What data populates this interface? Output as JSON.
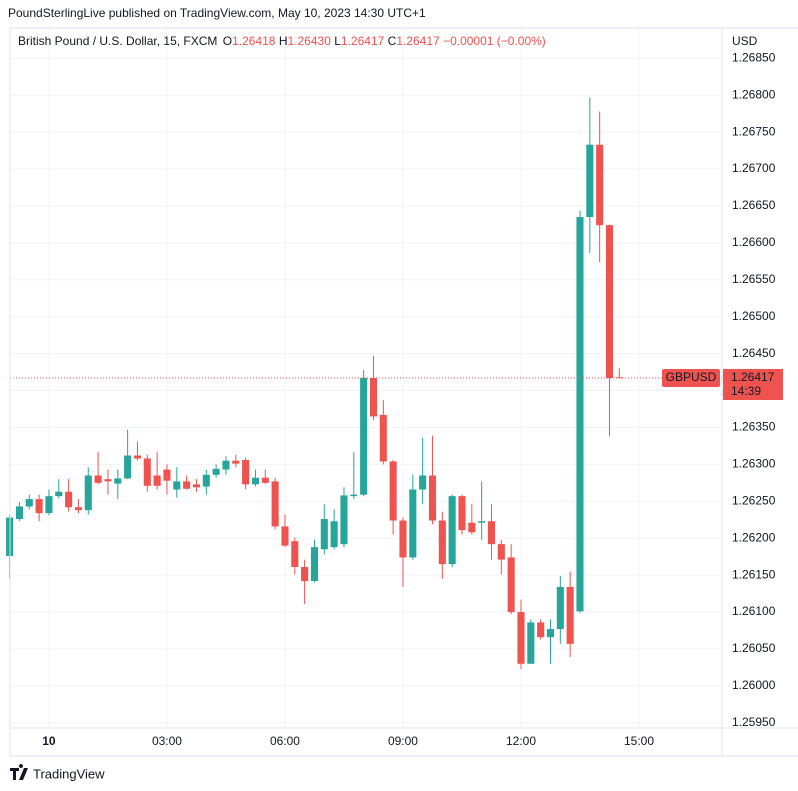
{
  "chart_data": {
    "type": "candlestick",
    "title": "PoundSterlingLive published on TradingView.com, May 10, 2023 14:30 UTC+1",
    "symbol_description": "British Pound / U.S. Dollar, 15, FXCM",
    "ohlc_legend": [
      {
        "key": "O",
        "text": "1.26418"
      },
      {
        "key": "H",
        "text": "1.26430"
      },
      {
        "key": "L",
        "text": "1.26417"
      },
      {
        "key": "C",
        "text": "1.26417"
      }
    ],
    "change": "−0.00001 (−0.00%)",
    "currency": "USD",
    "watermark": "TradingView",
    "up_color": "#26a69a",
    "down_color": "#ef5350",
    "grid": true,
    "last_price": {
      "symbol": "GBPUSD",
      "value_label": "1.26417",
      "countdown": "14:39"
    },
    "xlim": [
      -0.99,
      17.11
    ],
    "xticks": [
      {
        "value": 0,
        "label": "10"
      },
      {
        "value": 3,
        "label": "03:00"
      },
      {
        "value": 6,
        "label": "06:00"
      },
      {
        "value": 9,
        "label": "09:00"
      },
      {
        "value": 12,
        "label": "12:00"
      },
      {
        "value": 15,
        "label": "15:00"
      }
    ],
    "ylim": [
      1.25943,
      1.26891
    ],
    "yticks": [
      {
        "value": 1.2595,
        "label": "1.25950"
      },
      {
        "value": 1.26,
        "label": "1.26000"
      },
      {
        "value": 1.2605,
        "label": "1.26050"
      },
      {
        "value": 1.261,
        "label": "1.26100"
      },
      {
        "value": 1.2615,
        "label": "1.26150"
      },
      {
        "value": 1.262,
        "label": "1.26200"
      },
      {
        "value": 1.2625,
        "label": "1.26250"
      },
      {
        "value": 1.263,
        "label": "1.26300"
      },
      {
        "value": 1.2635,
        "label": "1.26350"
      },
      {
        "value": 1.264,
        "label": "1.26400"
      },
      {
        "value": 1.2645,
        "label": "1.26450"
      },
      {
        "value": 1.265,
        "label": "1.26500"
      },
      {
        "value": 1.2655,
        "label": "1.26550"
      },
      {
        "value": 1.266,
        "label": "1.26600"
      },
      {
        "value": 1.2665,
        "label": "1.26650"
      },
      {
        "value": 1.267,
        "label": "1.26700"
      },
      {
        "value": 1.2675,
        "label": "1.26750"
      },
      {
        "value": 1.268,
        "label": "1.26800"
      },
      {
        "value": 1.2685,
        "label": "1.26850"
      }
    ],
    "x": [
      -1,
      -0.75,
      -0.5,
      -0.25,
      0,
      0.25,
      0.5,
      0.75,
      1,
      1.25,
      1.5,
      1.75,
      2,
      2.25,
      2.5,
      2.75,
      3,
      3.25,
      3.5,
      3.75,
      4,
      4.25,
      4.5,
      4.75,
      5,
      5.25,
      5.5,
      5.75,
      6,
      6.25,
      6.5,
      6.75,
      7,
      7.25,
      7.5,
      7.75,
      8,
      8.25,
      8.5,
      8.75,
      9,
      9.25,
      9.5,
      9.75,
      10,
      10.25,
      10.5,
      10.75,
      11,
      11.25,
      11.5,
      11.75,
      12,
      12.25,
      12.5,
      12.75,
      13,
      13.25,
      13.5,
      13.75,
      14,
      14.25,
      14.5
    ],
    "open": [
      1.26176,
      1.26226,
      1.26243,
      1.26253,
      1.26234,
      1.26257,
      1.26263,
      1.26242,
      1.26238,
      1.26285,
      1.2628,
      1.26274,
      1.26281,
      1.26312,
      1.26308,
      1.26285,
      1.26293,
      1.26266,
      1.26277,
      1.26273,
      1.2627,
      1.26286,
      1.26293,
      1.26305,
      1.26306,
      1.26273,
      1.26282,
      1.26277,
      1.26216,
      1.26196,
      1.26161,
      1.26142,
      1.26185,
      1.26188,
      1.26192,
      1.26257,
      1.26259,
      1.26417,
      1.26367,
      1.26304,
      1.26224,
      1.26174,
      1.26266,
      1.26285,
      1.26224,
      1.26165,
      1.26257,
      1.26221,
      1.26221,
      1.26223,
      1.26192,
      1.26174,
      1.261,
      1.2603,
      1.26086,
      1.26066,
      1.26077,
      1.26134,
      1.26101,
      1.26635,
      1.26733,
      1.26624,
      1.26418
    ],
    "high": [
      1.26232,
      1.26249,
      1.26259,
      1.26259,
      1.26266,
      1.2628,
      1.2628,
      1.26253,
      1.26296,
      1.26317,
      1.26293,
      1.26293,
      1.26347,
      1.26331,
      1.26313,
      1.26317,
      1.263,
      1.26296,
      1.26285,
      1.2628,
      1.26293,
      1.263,
      1.26311,
      1.26313,
      1.26309,
      1.26293,
      1.26293,
      1.26282,
      1.26232,
      1.26201,
      1.26171,
      1.26198,
      1.26246,
      1.26239,
      1.26269,
      1.26317,
      1.26428,
      1.26447,
      1.26387,
      1.26306,
      1.26228,
      1.26286,
      1.26336,
      1.26339,
      1.26236,
      1.26259,
      1.26259,
      1.26246,
      1.26277,
      1.26246,
      1.26198,
      1.26192,
      1.26117,
      1.2609,
      1.2609,
      1.2609,
      1.26149,
      1.26155,
      1.26644,
      1.26797,
      1.26778,
      1.26625,
      1.2643
    ],
    "low": [
      1.26145,
      1.26223,
      1.26239,
      1.26223,
      1.26231,
      1.26254,
      1.26236,
      1.26234,
      1.26232,
      1.26273,
      1.26259,
      1.26253,
      1.2628,
      1.26305,
      1.26263,
      1.26266,
      1.26259,
      1.26255,
      1.26266,
      1.26263,
      1.26259,
      1.26282,
      1.26286,
      1.26296,
      1.26266,
      1.2627,
      1.26273,
      1.26212,
      1.26188,
      1.26151,
      1.26111,
      1.2614,
      1.26178,
      1.26185,
      1.26188,
      1.26253,
      1.26257,
      1.2636,
      1.263,
      1.26205,
      1.26134,
      1.26171,
      1.26246,
      1.26219,
      1.26145,
      1.26161,
      1.26205,
      1.26205,
      1.26198,
      1.26171,
      1.26151,
      1.26097,
      1.26023,
      1.2603,
      1.26063,
      1.2603,
      1.26057,
      1.26039,
      1.26099,
      1.26586,
      1.26574,
      1.26338,
      1.26417
    ],
    "close": [
      1.26228,
      1.26243,
      1.26253,
      1.26234,
      1.26257,
      1.26263,
      1.26242,
      1.26238,
      1.26285,
      1.26275,
      1.26277,
      1.26281,
      1.26312,
      1.26308,
      1.26271,
      1.26271,
      1.26278,
      1.26277,
      1.26267,
      1.26269,
      1.26286,
      1.26294,
      1.26305,
      1.26301,
      1.26273,
      1.26282,
      1.26275,
      1.26216,
      1.2619,
      1.26161,
      1.26142,
      1.26188,
      1.26226,
      1.26223,
      1.26258,
      1.26259,
      1.26417,
      1.26365,
      1.26304,
      1.26224,
      1.26174,
      1.26266,
      1.26285,
      1.26224,
      1.26165,
      1.26257,
      1.26211,
      1.26208,
      1.26223,
      1.26192,
      1.26171,
      1.261,
      1.2603,
      1.26086,
      1.26066,
      1.26077,
      1.26134,
      1.26057,
      1.26635,
      1.26733,
      1.26624,
      1.26417,
      1.26417
    ]
  }
}
